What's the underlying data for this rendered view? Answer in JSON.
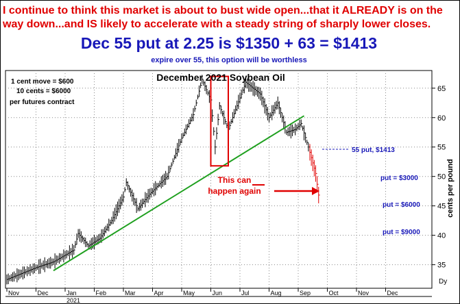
{
  "header": {
    "commentary": "I continue to think this market is about to bust wide open...that it ALREADY  is on the way down...and IS likely to accelerate with a steady string of sharply lower closes.",
    "headline": "Dec 55 put at 2.25 is $1350 + 63 = $1413",
    "subnote": "expire over 55, this option will be worthless"
  },
  "colors": {
    "header_red": "#e00000",
    "header_blue": "#1818b8",
    "trendline": "#1fa01f",
    "annotation_red": "#e00000",
    "price_bars": "#000000"
  },
  "chart_data": {
    "type": "bar",
    "title": "December 2021 Soybean Oil",
    "ylabel": "cents per pound",
    "ylim": [
      31,
      68
    ],
    "yticks": [
      35,
      40,
      45,
      50,
      55,
      60,
      65
    ],
    "ytick_labels": [
      "35",
      "40",
      "45",
      "50",
      "55",
      "60",
      "65"
    ],
    "x_months": [
      "Nov",
      "Dec",
      "Jan",
      "Feb",
      "Mar",
      "Apr",
      "May",
      "Jun",
      "Jul",
      "Aug",
      "Sep",
      "Oct",
      "Nov",
      "Dec"
    ],
    "x_year_label": "2021",
    "grid": true,
    "price_path": [
      [
        0,
        32.5
      ],
      [
        1,
        34.5
      ],
      [
        1.6,
        35.5
      ],
      [
        2.3,
        37.5
      ],
      [
        2.45,
        40.3
      ],
      [
        2.8,
        38.2
      ],
      [
        3.2,
        39.5
      ],
      [
        3.6,
        42.5
      ],
      [
        4.0,
        46.5
      ],
      [
        4.1,
        49.0
      ],
      [
        4.5,
        44.5
      ],
      [
        4.9,
        47.0
      ],
      [
        5.5,
        50.0
      ],
      [
        6.0,
        56.5
      ],
      [
        6.4,
        60.5
      ],
      [
        6.7,
        66.5
      ],
      [
        7.0,
        63.0
      ],
      [
        7.15,
        55.0
      ],
      [
        7.3,
        62.0
      ],
      [
        7.6,
        58.0
      ],
      [
        8.2,
        66.0
      ],
      [
        8.7,
        64.0
      ],
      [
        9.0,
        60.0
      ],
      [
        9.3,
        62.5
      ],
      [
        9.6,
        57.5
      ],
      [
        9.9,
        58.0
      ],
      [
        10.1,
        59.0
      ],
      [
        10.35,
        55.0
      ],
      [
        10.6,
        50.5
      ],
      [
        10.75,
        45.0
      ]
    ],
    "trendline": {
      "from": [
        1.6,
        34.0
      ],
      "to": [
        10.2,
        60.3
      ]
    },
    "notes": {
      "contract": [
        "1 cent move = $600",
        "10 cents = $6000",
        "per futures contract"
      ],
      "pattern": [
        "This can",
        "happen again"
      ],
      "put_labels": [
        "55 put, $1413",
        "put = $3000",
        "put = $6000",
        "put = $9000"
      ]
    },
    "highlight_box": {
      "x_range": [
        7.0,
        7.6
      ],
      "y_range": [
        51.8,
        67.0
      ]
    }
  }
}
